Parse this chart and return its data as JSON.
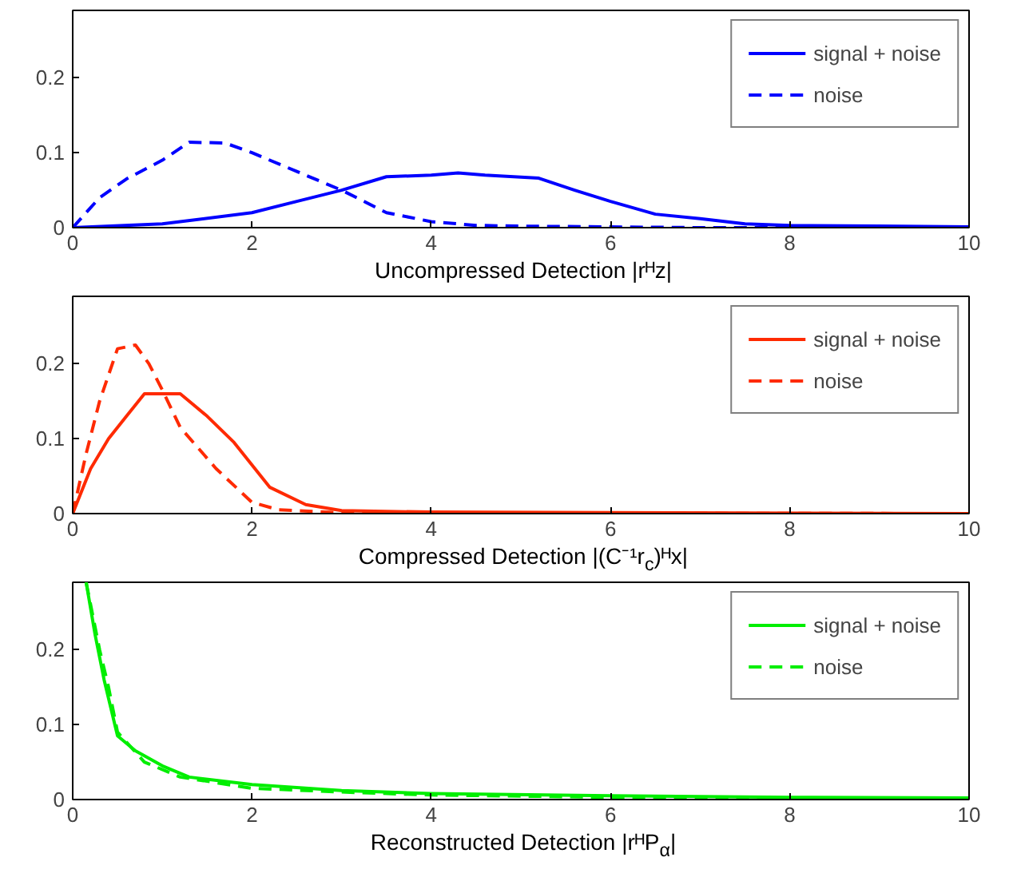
{
  "chart_data": [
    {
      "type": "line",
      "xlabel": "Uncompressed Detection |rᴴz|",
      "xlim": [
        0,
        10
      ],
      "ylim": [
        0,
        0.29
      ],
      "xticks": [
        0,
        2,
        4,
        6,
        8,
        10
      ],
      "yticks": [
        0,
        0.1,
        0.2
      ],
      "legend": "top right",
      "grid": false,
      "series": [
        {
          "name": "signal + noise",
          "color": "#0000ff",
          "line_style": "solid",
          "x": [
            0,
            1,
            2,
            2.5,
            3,
            3.5,
            4,
            4.3,
            4.6,
            5.2,
            5.6,
            6,
            6.5,
            7,
            7.5,
            8,
            9,
            10
          ],
          "values": [
            0,
            0.005,
            0.02,
            0.035,
            0.05,
            0.068,
            0.07,
            0.073,
            0.07,
            0.066,
            0.05,
            0.035,
            0.018,
            0.012,
            0.005,
            0.003,
            0.002,
            0.001
          ]
        },
        {
          "name": "noise",
          "color": "#0000ff",
          "line_style": "dashed",
          "x": [
            0,
            0.3,
            0.6,
            1,
            1.3,
            1.7,
            2,
            2.5,
            3,
            3.5,
            4,
            4.5,
            5,
            6,
            7,
            10
          ],
          "values": [
            0,
            0.04,
            0.065,
            0.09,
            0.114,
            0.113,
            0.1,
            0.075,
            0.05,
            0.02,
            0.008,
            0.003,
            0.002,
            0.001,
            0,
            0
          ]
        }
      ]
    },
    {
      "type": "line",
      "xlabel": "Compressed Detection |(C⁻¹r$_{c}$)ᴴx|",
      "xlim": [
        0,
        10
      ],
      "ylim": [
        0,
        0.29
      ],
      "xticks": [
        0,
        2,
        4,
        6,
        8,
        10
      ],
      "yticks": [
        0,
        0.1,
        0.2
      ],
      "legend": "top right",
      "grid": false,
      "series": [
        {
          "name": "signal + noise",
          "color": "#ff2a00",
          "line_style": "solid",
          "x": [
            0,
            0.2,
            0.4,
            0.6,
            0.8,
            1.2,
            1.5,
            1.8,
            2.2,
            2.6,
            3,
            4,
            10
          ],
          "values": [
            0,
            0.06,
            0.1,
            0.13,
            0.16,
            0.16,
            0.13,
            0.095,
            0.035,
            0.012,
            0.004,
            0.002,
            0
          ]
        },
        {
          "name": "noise",
          "color": "#ff2a00",
          "line_style": "dashed",
          "x": [
            0,
            0.15,
            0.3,
            0.5,
            0.7,
            0.85,
            1,
            1.2,
            1.6,
            2,
            2.3,
            3,
            10
          ],
          "values": [
            0,
            0.08,
            0.15,
            0.22,
            0.225,
            0.2,
            0.165,
            0.115,
            0.06,
            0.015,
            0.005,
            0.001,
            0
          ]
        }
      ]
    },
    {
      "type": "line",
      "xlabel": "Reconstructed Detection |rᴴP$_{α}$|",
      "xlim": [
        0,
        10
      ],
      "ylim": [
        0,
        0.29
      ],
      "xticks": [
        0,
        2,
        4,
        6,
        8,
        10
      ],
      "yticks": [
        0,
        0.1,
        0.2
      ],
      "legend": "top right",
      "grid": false,
      "series": [
        {
          "name": "signal + noise",
          "color": "#00ee00",
          "line_style": "solid",
          "x": [
            0.15,
            0.25,
            0.35,
            0.5,
            0.7,
            1,
            1.3,
            2,
            3,
            4,
            6,
            8,
            10
          ],
          "values": [
            0.29,
            0.22,
            0.16,
            0.085,
            0.065,
            0.045,
            0.03,
            0.02,
            0.012,
            0.008,
            0.005,
            0.003,
            0.002
          ]
        },
        {
          "name": "noise",
          "color": "#00ee00",
          "line_style": "dashed",
          "x": [
            0.15,
            0.3,
            0.4,
            0.5,
            0.8,
            1.2,
            2,
            3,
            4,
            6,
            8,
            10
          ],
          "values": [
            0.29,
            0.2,
            0.15,
            0.09,
            0.05,
            0.03,
            0.015,
            0.01,
            0.006,
            0.003,
            0.002,
            0.001
          ]
        }
      ]
    }
  ]
}
